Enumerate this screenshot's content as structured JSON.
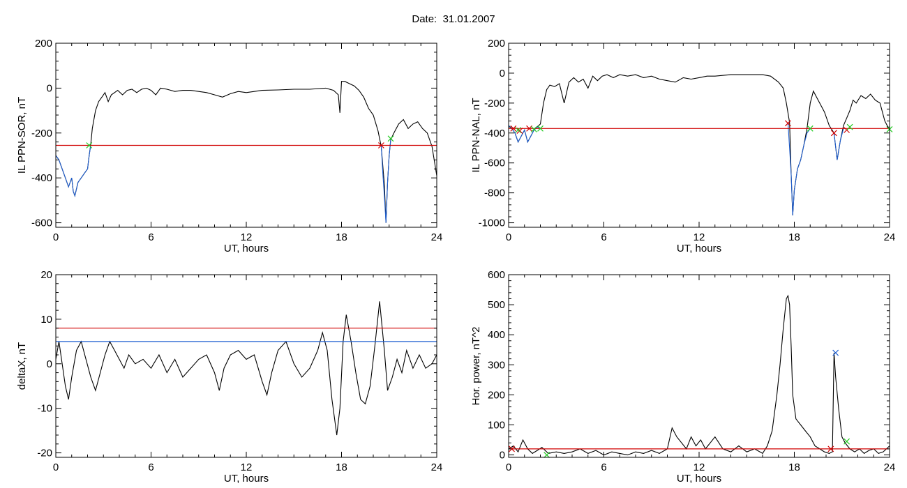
{
  "page": {
    "title_prefix": "Date:",
    "title_date": "31.01.2007"
  },
  "chart_data": [
    {
      "id": "sor",
      "type": "line",
      "xlabel": "UT, hours",
      "ylabel": "IL PPN-SOR, nT",
      "xlim": [
        0,
        24
      ],
      "ylim": [
        -620,
        200
      ],
      "xticks": [
        0,
        6,
        12,
        18,
        24
      ],
      "yticks": [
        -600,
        -400,
        -200,
        0,
        200
      ],
      "series": [
        {
          "color": "#000000",
          "x": [
            0,
            0.2,
            0.4,
            0.6,
            0.8,
            1.0,
            1.1,
            1.2,
            1.4,
            1.6,
            1.8,
            2.0,
            2.1,
            2.2,
            2.3,
            2.5,
            2.7,
            2.9,
            3.1,
            3.3,
            3.5,
            3.7,
            3.9,
            4.2,
            4.5,
            4.8,
            5.1,
            5.4,
            5.7,
            6.0,
            6.3,
            6.6,
            7.0,
            7.5,
            8.0,
            8.5,
            9.0,
            9.5,
            10.0,
            10.5,
            11.0,
            11.5,
            12.0,
            13.0,
            14.0,
            15.0,
            16.0,
            17.0,
            17.5,
            17.8,
            17.9,
            18.0,
            18.2,
            18.5,
            18.8,
            19.1,
            19.4,
            19.7,
            20.0,
            20.3,
            20.5,
            20.7,
            20.8,
            20.9,
            21.0,
            21.1,
            21.3,
            21.6,
            21.9,
            22.2,
            22.5,
            22.8,
            23.1,
            23.4,
            23.7,
            24.0
          ],
          "y": [
            -300,
            -320,
            -360,
            -400,
            -440,
            -400,
            -460,
            -480,
            -420,
            -400,
            -380,
            -360,
            -300,
            -250,
            -180,
            -100,
            -60,
            -40,
            -20,
            -60,
            -30,
            -20,
            -10,
            -30,
            -10,
            -5,
            -20,
            -5,
            0,
            -10,
            -30,
            0,
            -5,
            -15,
            -10,
            -10,
            -15,
            -20,
            -30,
            -40,
            -25,
            -15,
            -20,
            -10,
            -8,
            -5,
            -5,
            0,
            -10,
            -30,
            -110,
            30,
            30,
            20,
            10,
            -10,
            -40,
            -90,
            -120,
            -190,
            -260,
            -430,
            -600,
            -420,
            -300,
            -230,
            -200,
            -160,
            -140,
            -180,
            -160,
            -150,
            -180,
            -200,
            -260,
            -390
          ]
        },
        {
          "color": "#1f5fd1",
          "x": [
            0,
            0.2,
            0.4,
            0.6,
            0.8,
            1.0,
            1.1,
            1.2,
            1.4,
            1.6,
            1.8,
            2.0,
            2.1,
            2.2
          ],
          "y": [
            -300,
            -320,
            -360,
            -400,
            -440,
            -400,
            -460,
            -480,
            -420,
            -400,
            -380,
            -360,
            -300,
            -255
          ]
        },
        {
          "color": "#1f5fd1",
          "x": [
            20.5,
            20.6,
            20.7,
            20.8,
            20.9,
            21.0,
            21.1
          ],
          "y": [
            -255,
            -380,
            -480,
            -600,
            -420,
            -300,
            -230
          ]
        },
        {
          "color": "#d00000",
          "x": [
            0,
            24
          ],
          "y": [
            -255,
            -255
          ]
        },
        {
          "color": "#d00000",
          "marker": "x",
          "x": [
            20.5
          ],
          "y": [
            -255
          ]
        },
        {
          "color": "#22cc22",
          "marker": "x",
          "x": [
            2.1,
            21.1
          ],
          "y": [
            -255,
            -225
          ]
        }
      ]
    },
    {
      "id": "nal",
      "type": "line",
      "xlabel": "UT, hours",
      "ylabel": "IL PPN-NAL, nT",
      "xlim": [
        0,
        24
      ],
      "ylim": [
        -1030,
        200
      ],
      "xticks": [
        0,
        6,
        12,
        18,
        24
      ],
      "yticks": [
        -1000,
        -800,
        -600,
        -400,
        -200,
        0,
        200
      ],
      "series": [
        {
          "color": "#000000",
          "x": [
            0,
            0.2,
            0.4,
            0.6,
            0.8,
            1.0,
            1.2,
            1.4,
            1.6,
            1.8,
            2.0,
            2.2,
            2.4,
            2.6,
            2.9,
            3.2,
            3.5,
            3.8,
            4.1,
            4.4,
            4.7,
            5.0,
            5.3,
            5.6,
            5.9,
            6.2,
            6.6,
            7.0,
            7.5,
            8.0,
            8.5,
            9.0,
            9.5,
            10.0,
            10.5,
            11.0,
            11.5,
            12.0,
            12.5,
            13.0,
            14.0,
            15.0,
            16.0,
            16.5,
            17.0,
            17.3,
            17.5,
            17.7,
            17.8,
            17.9,
            18.0,
            18.2,
            18.4,
            18.6,
            18.8,
            19.0,
            19.2,
            19.4,
            19.6,
            19.9,
            20.2,
            20.5,
            20.7,
            20.9,
            21.1,
            21.3,
            21.5,
            21.7,
            21.9,
            22.2,
            22.5,
            22.8,
            23.1,
            23.4,
            23.7,
            24.0
          ],
          "y": [
            -350,
            -370,
            -400,
            -460,
            -420,
            -380,
            -460,
            -420,
            -380,
            -360,
            -340,
            -200,
            -110,
            -80,
            -90,
            -70,
            -200,
            -60,
            -30,
            -60,
            -40,
            -100,
            -20,
            -50,
            -20,
            -10,
            -30,
            -10,
            -20,
            -10,
            -30,
            -20,
            -40,
            -50,
            -60,
            -30,
            -40,
            -30,
            -20,
            -20,
            -10,
            -10,
            -10,
            -20,
            -60,
            -100,
            -200,
            -330,
            -680,
            -950,
            -780,
            -640,
            -580,
            -480,
            -370,
            -200,
            -120,
            -160,
            -200,
            -260,
            -350,
            -400,
            -580,
            -450,
            -350,
            -300,
            -250,
            -180,
            -200,
            -150,
            -170,
            -140,
            -180,
            -200,
            -320,
            -380
          ]
        },
        {
          "color": "#1f5fd1",
          "x": [
            0,
            0.2,
            0.4,
            0.6,
            0.8,
            1.0,
            1.2,
            1.4,
            1.6,
            1.8,
            2.0
          ],
          "y": [
            -350,
            -370,
            -400,
            -460,
            -420,
            -380,
            -460,
            -420,
            -380,
            -360,
            -370
          ]
        },
        {
          "color": "#1f5fd1",
          "x": [
            17.6,
            17.7,
            17.8,
            17.9,
            18.0,
            18.2,
            18.4,
            18.6,
            18.8,
            19.0
          ],
          "y": [
            -330,
            -500,
            -680,
            -950,
            -780,
            -640,
            -580,
            -480,
            -400,
            -370
          ]
        },
        {
          "color": "#1f5fd1",
          "x": [
            20.5,
            20.7,
            20.9,
            21.1
          ],
          "y": [
            -400,
            -580,
            -450,
            -370
          ]
        },
        {
          "color": "#d00000",
          "x": [
            0,
            24
          ],
          "y": [
            -370,
            -370
          ]
        },
        {
          "color": "#d00000",
          "marker": "x",
          "x": [
            0.3,
            0.7,
            1.3,
            17.6,
            20.5,
            21.3
          ],
          "y": [
            -370,
            -385,
            -370,
            -335,
            -400,
            -380
          ]
        },
        {
          "color": "#22cc22",
          "marker": "x",
          "x": [
            0.6,
            1.6,
            2.0,
            19.0,
            21.5,
            24.0
          ],
          "y": [
            -380,
            -375,
            -370,
            -370,
            -360,
            -375
          ]
        }
      ]
    },
    {
      "id": "deltax",
      "type": "line",
      "xlabel": "UT, hours",
      "ylabel": "deltaX, nT",
      "xlim": [
        0,
        24
      ],
      "ylim": [
        -21,
        20
      ],
      "xticks": [
        0,
        6,
        12,
        18,
        24
      ],
      "yticks": [
        -20,
        -10,
        0,
        10,
        20
      ],
      "series": [
        {
          "color": "#000000",
          "x": [
            0,
            0.2,
            0.4,
            0.6,
            0.8,
            1.0,
            1.3,
            1.6,
            1.9,
            2.2,
            2.5,
            2.8,
            3.1,
            3.4,
            3.7,
            4.0,
            4.3,
            4.6,
            5.0,
            5.5,
            6.0,
            6.5,
            7.0,
            7.5,
            8.0,
            8.5,
            9.0,
            9.5,
            10.0,
            10.3,
            10.6,
            11.0,
            11.5,
            12.0,
            12.5,
            13.0,
            13.3,
            13.6,
            14.0,
            14.5,
            15.0,
            15.5,
            16.0,
            16.5,
            16.8,
            17.1,
            17.4,
            17.7,
            17.9,
            18.1,
            18.3,
            18.6,
            18.9,
            19.2,
            19.5,
            19.8,
            20.1,
            20.4,
            20.7,
            20.9,
            21.2,
            21.5,
            21.8,
            22.1,
            22.5,
            22.9,
            23.3,
            23.7,
            24.0
          ],
          "y": [
            1,
            5,
            0,
            -5,
            -8,
            -3,
            3,
            5,
            1,
            -3,
            -6,
            -2,
            2,
            5,
            3,
            1,
            -1,
            2,
            0,
            1,
            -1,
            2,
            -2,
            1,
            -3,
            -1,
            1,
            2,
            -2,
            -6,
            -1,
            2,
            3,
            1,
            2,
            -4,
            -7,
            -2,
            3,
            5,
            0,
            -3,
            -1,
            3,
            7,
            3,
            -8,
            -16,
            -10,
            5,
            11,
            5,
            -2,
            -8,
            -9,
            -5,
            4,
            14,
            3,
            -6,
            -3,
            1,
            -2,
            3,
            -1,
            2,
            -1,
            0,
            2
          ]
        },
        {
          "color": "#d00000",
          "x": [
            0,
            24
          ],
          "y": [
            8,
            8
          ]
        },
        {
          "color": "#1f5fd1",
          "x": [
            0,
            24
          ],
          "y": [
            5,
            5
          ]
        }
      ]
    },
    {
      "id": "power",
      "type": "line",
      "xlabel": "UT, hours",
      "ylabel": "Hor. power, nT^2",
      "xlim": [
        0,
        24
      ],
      "ylim": [
        -8,
        600
      ],
      "xticks": [
        0,
        6,
        12,
        18,
        24
      ],
      "yticks": [
        0,
        100,
        200,
        300,
        400,
        500,
        600
      ],
      "series": [
        {
          "color": "#000000",
          "x": [
            0,
            0.3,
            0.6,
            0.9,
            1.2,
            1.5,
            1.8,
            2.1,
            2.5,
            3.0,
            3.5,
            4.0,
            4.5,
            5.0,
            5.5,
            6.0,
            6.5,
            7.0,
            7.5,
            8.0,
            8.5,
            9.0,
            9.5,
            10.0,
            10.3,
            10.6,
            10.9,
            11.2,
            11.5,
            11.8,
            12.1,
            12.4,
            12.7,
            13.0,
            13.5,
            14.0,
            14.5,
            15.0,
            15.5,
            16.0,
            16.3,
            16.6,
            16.9,
            17.1,
            17.3,
            17.5,
            17.6,
            17.7,
            17.8,
            17.9,
            18.1,
            18.4,
            18.7,
            19.0,
            19.3,
            19.6,
            19.9,
            20.2,
            20.4,
            20.5,
            20.6,
            20.8,
            21.0,
            21.2,
            21.5,
            21.8,
            22.1,
            22.4,
            22.7,
            23.0,
            23.3,
            23.6,
            24.0
          ],
          "y": [
            20,
            30,
            10,
            50,
            20,
            5,
            15,
            25,
            5,
            10,
            5,
            10,
            20,
            5,
            15,
            0,
            10,
            5,
            0,
            10,
            5,
            15,
            5,
            20,
            90,
            60,
            40,
            20,
            60,
            30,
            50,
            20,
            40,
            60,
            20,
            10,
            30,
            10,
            20,
            5,
            30,
            80,
            200,
            300,
            420,
            520,
            530,
            500,
            360,
            200,
            120,
            100,
            80,
            60,
            30,
            20,
            10,
            5,
            10,
            340,
            260,
            150,
            60,
            40,
            20,
            10,
            20,
            5,
            15,
            20,
            5,
            10,
            30
          ]
        },
        {
          "color": "#d00000",
          "x": [
            0,
            24
          ],
          "y": [
            20,
            20
          ]
        },
        {
          "color": "#d00000",
          "marker": "x",
          "x": [
            0.2,
            20.3
          ],
          "y": [
            20,
            20
          ]
        },
        {
          "color": "#1f5fd1",
          "marker": "x",
          "x": [
            20.6
          ],
          "y": [
            340
          ]
        },
        {
          "color": "#22cc22",
          "marker": "x",
          "x": [
            2.4,
            21.3
          ],
          "y": [
            0,
            45
          ]
        }
      ]
    }
  ]
}
